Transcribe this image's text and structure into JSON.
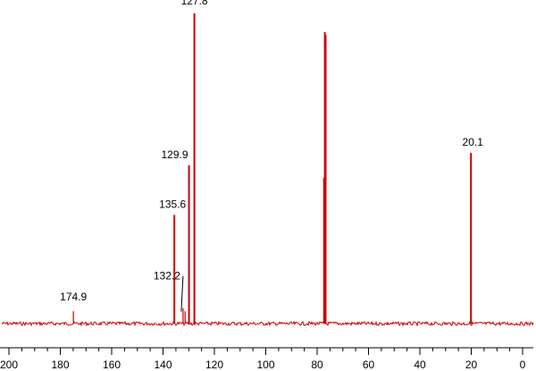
{
  "chart_data": {
    "type": "line",
    "title": "",
    "xlabel": "",
    "ylabel": "",
    "x_reversed": true,
    "xlim": [
      200,
      -3
    ],
    "ylim": [
      0,
      100
    ],
    "grid": false,
    "baseline": 0,
    "line_color": "#cc0000",
    "axis_color": "#000000",
    "ticks": [
      200,
      180,
      160,
      140,
      120,
      100,
      80,
      60,
      40,
      20,
      0
    ],
    "tick_labels": [
      "200",
      "180",
      "160",
      "140",
      "120",
      "100",
      "80",
      "60",
      "40",
      "20",
      "0"
    ],
    "minor_tick_step": 5,
    "series": [
      {
        "peaks": [
          {
            "shift": 174.9,
            "height": 4,
            "label": "174.9"
          },
          {
            "shift": 135.6,
            "height": 35,
            "label": "135.6"
          },
          {
            "shift": 132.2,
            "height": 5,
            "label": "132.2"
          },
          {
            "shift": 131.4,
            "height": 4,
            "label": ""
          },
          {
            "shift": 129.9,
            "height": 51,
            "label": "129.9"
          },
          {
            "shift": 127.8,
            "height": 100,
            "label": "127.8"
          },
          {
            "shift": 77.3,
            "height": 47,
            "label": ""
          },
          {
            "shift": 77.0,
            "height": 94,
            "label": ""
          },
          {
            "shift": 76.7,
            "height": 93,
            "label": ""
          },
          {
            "shift": 20.1,
            "height": 55,
            "label": "20.1"
          }
        ]
      }
    ]
  }
}
